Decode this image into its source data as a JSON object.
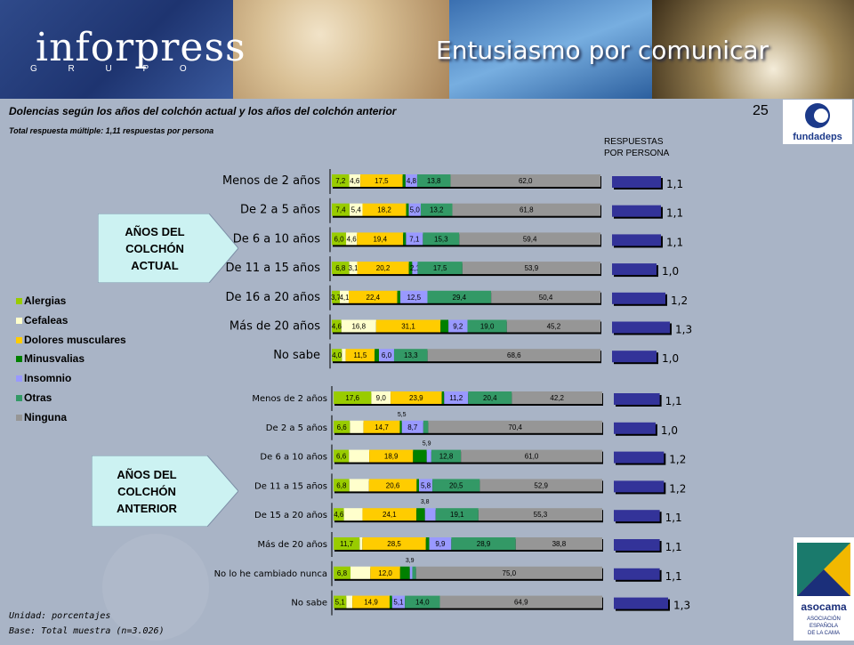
{
  "header": {
    "logo_text": "inforpress",
    "logo_subtext": "G R U P O",
    "slogan": "Entusiasmo por comunicar"
  },
  "page_number": "25",
  "title": "Dolencias según los años del colchón actual y los años del colchón anterior",
  "subtitle": "Total respuesta múltiple: 1,11 respuestas por persona",
  "responses_header": [
    "RESPUESTAS",
    "POR PERSONA"
  ],
  "logos": {
    "right_top": "fundadeps",
    "right_bottom": "asocama",
    "right_bottom_sub": [
      "ASOCIACIÓN",
      "ESPAÑOLA",
      "DE LA CAMA"
    ]
  },
  "section_labels": {
    "actual": [
      "AÑOS DEL",
      "COLCHÓN",
      "ACTUAL"
    ],
    "anterior": [
      "AÑOS DEL",
      "COLCHÓN",
      "ANTERIOR"
    ]
  },
  "footer": {
    "unit": "Unidad: porcentajes",
    "base": "Base: Total muestra (n=3.026)"
  },
  "colors": {
    "background": "#a9b4c6",
    "Alergias": "#99cc00",
    "Cefaleas": "#ffffcc",
    "Dolores musculares": "#ffcc00",
    "Minusvalías": "#008000",
    "Insomnio": "#9999ff",
    "Otras": "#339966",
    "Ninguna": "#969696",
    "responses_bar": "#333399",
    "section_box": "#ccf2f2"
  },
  "chart_data": [
    {
      "type": "bar",
      "stacked": true,
      "orientation": "horizontal",
      "series_names": [
        "Alergias",
        "Cefaleas",
        "Dolores musculares",
        "Minusvalías",
        "Insomnio",
        "Otras",
        "Ninguna"
      ],
      "categories": [
        "Menos de 2 años",
        "De 2 a 5 años",
        "De 6 a 10 años",
        "De 11 a 15 años",
        "De 16 a 20 años",
        "Más de 20 años",
        "No sabe"
      ],
      "values": [
        [
          7.2,
          4.6,
          17.5,
          1.2,
          4.8,
          13.8,
          62.0
        ],
        [
          7.4,
          5.4,
          18.2,
          1.1,
          5.0,
          13.2,
          61.8
        ],
        [
          6.0,
          4.6,
          19.4,
          1.2,
          7.1,
          15.3,
          59.4
        ],
        [
          6.8,
          3.1,
          20.2,
          1.3,
          2.1,
          17.5,
          53.9
        ],
        [
          3.7,
          4.1,
          22.4,
          1.4,
          12.5,
          29.4,
          50.4
        ],
        [
          4.6,
          16.8,
          31.1,
          3.8,
          9.2,
          19.0,
          45.2
        ],
        [
          4.0,
          1.5,
          11.5,
          1.7,
          6.0,
          13.3,
          68.6
        ]
      ],
      "labels": [
        [
          "7,2",
          "4,6",
          "17,5",
          "",
          "4,8",
          "13,8",
          "62,0"
        ],
        [
          "7,4",
          "5,4",
          "18,2",
          "",
          "5,0",
          "13,2",
          "61,8"
        ],
        [
          "6,0",
          "4,6",
          "19,4",
          "",
          "7,1",
          "15,3",
          "59,4"
        ],
        [
          "6,8",
          "3,1",
          "20,2",
          "",
          "2,1",
          "17,5",
          "53,9"
        ],
        [
          "3,7",
          "4,1",
          "22,4",
          "",
          "12,5",
          "29,4",
          "50,4"
        ],
        [
          "4,6",
          "16,8",
          "31,1",
          "",
          "9,2",
          "19,0",
          "45,2"
        ],
        [
          "4,0",
          "",
          "11,5",
          "",
          "6,0",
          "13,3",
          "68,6"
        ]
      ],
      "responses_per_person": [
        "1,1",
        "1,1",
        "1,1",
        "1,0",
        "1,2",
        "1,3",
        "1,0"
      ],
      "responses_values": [
        1.1,
        1.1,
        1.1,
        1.0,
        1.2,
        1.3,
        1.0
      ],
      "legend": [
        "Alergias",
        "Cefaleas",
        "Dolores musculares",
        "Minusvalias",
        "Insomnio",
        "Otras",
        "Ninguna"
      ]
    },
    {
      "type": "bar",
      "stacked": true,
      "orientation": "horizontal",
      "series_names": [
        "Alergias",
        "Cefaleas",
        "Dolores musculares",
        "Minusvalías",
        "Insomnio",
        "Otras",
        "Ninguna"
      ],
      "categories": [
        "Menos de 2 años",
        "De 2 a 5 años",
        "De 6 a 10 años",
        "De 11 a 15 años",
        "De 15 a 20 años",
        "Más de 20 años",
        "No lo he cambiado nunca",
        "No sabe"
      ],
      "values": [
        [
          17.6,
          9.0,
          23.9,
          1.1,
          11.2,
          20.4,
          42.2
        ],
        [
          6.6,
          5.5,
          14.7,
          0.8,
          8.7,
          2.0,
          70.4
        ],
        [
          6.6,
          8.8,
          18.9,
          5.9,
          2.0,
          12.8,
          61.0
        ],
        [
          6.8,
          8.5,
          20.6,
          1.0,
          5.8,
          20.5,
          52.9
        ],
        [
          4.6,
          8.3,
          24.1,
          3.8,
          4.8,
          19.1,
          55.3
        ],
        [
          11.7,
          1.2,
          28.5,
          1.5,
          9.9,
          28.9,
          38.8
        ],
        [
          6.8,
          8.0,
          12.0,
          3.9,
          1.0,
          1.5,
          75.0
        ],
        [
          5.1,
          2.4,
          14.9,
          1.0,
          5.1,
          14.0,
          64.9
        ]
      ],
      "labels": [
        [
          "17,6",
          "9,0",
          "23,9",
          "",
          "11,2",
          "20,4",
          "42,2"
        ],
        [
          "6,6",
          "",
          "14,7",
          "",
          "8,7",
          "",
          "70,4"
        ],
        [
          "6,6",
          "",
          "18,9",
          "",
          "",
          "12,8",
          "61,0"
        ],
        [
          "6,8",
          "",
          "20,6",
          "",
          "5,8",
          "20,5",
          "52,9"
        ],
        [
          "4,6",
          "",
          "24,1",
          "",
          "",
          "19,1",
          "55,3"
        ],
        [
          "11,7",
          "",
          "28,5",
          "",
          "9,9",
          "28,9",
          "38,8"
        ],
        [
          "6,8",
          "",
          "12,0",
          "",
          "",
          "",
          "75,0"
        ],
        [
          "5,1",
          "",
          "14,9",
          "",
          "5,1",
          "14,0",
          "64,9"
        ]
      ],
      "above_labels": [
        "",
        "5,5",
        "5,9",
        "",
        "3,8",
        "",
        "3,9",
        ""
      ],
      "responses_per_person": [
        "1,1",
        "1,0",
        "1,2",
        "1,2",
        "1,1",
        "1,1",
        "1,1",
        "1,3"
      ],
      "responses_values": [
        1.1,
        1.0,
        1.2,
        1.2,
        1.1,
        1.1,
        1.1,
        1.3
      ]
    }
  ]
}
